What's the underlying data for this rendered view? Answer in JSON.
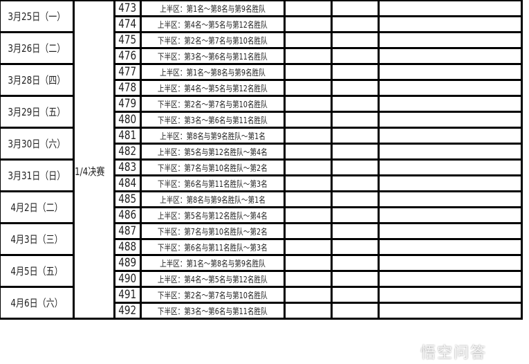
{
  "stage": "1/4决赛",
  "dates": [
    "3月25日（一）",
    "3月26日（二）",
    "3月28日（四）",
    "3月29日（五）",
    "3月30日（六）",
    "3月31日（日）",
    "4月2日（二）",
    "4月3日（三）",
    "4月5日（五）",
    "4月6日（六）"
  ],
  "games": [
    {
      "num": "473",
      "desc": "上半区：第1名～第8名与第9名胜队"
    },
    {
      "num": "474",
      "desc": "上半区：第4名～第5名与第12名胜队"
    },
    {
      "num": "475",
      "desc": "下半区：第2名～第7名与第10名胜队"
    },
    {
      "num": "476",
      "desc": "下半区：第3名～第6名与第11名胜队"
    },
    {
      "num": "477",
      "desc": "上半区：第1名～第8名与第9名胜队"
    },
    {
      "num": "478",
      "desc": "上半区：第4名～第5名与第12名胜队"
    },
    {
      "num": "479",
      "desc": "下半区：第2名～第7名与第10名胜队"
    },
    {
      "num": "480",
      "desc": "下半区：第3名～第6名与第11名胜队"
    },
    {
      "num": "481",
      "desc": "上半区：第8名与第9名胜队～第1名"
    },
    {
      "num": "482",
      "desc": "上半区：第5名与第12名胜队～第4名"
    },
    {
      "num": "483",
      "desc": "下半区：第7名与第10名胜队～第2名"
    },
    {
      "num": "484",
      "desc": "下半区：第6名与第11名胜队～第3名"
    },
    {
      "num": "485",
      "desc": "上半区：第8名与第9名胜队～第1名"
    },
    {
      "num": "486",
      "desc": "上半区：第5名与第12名胜队～第4名"
    },
    {
      "num": "487",
      "desc": "下半区：第7名与第10名胜队～第2名"
    },
    {
      "num": "488",
      "desc": "下半区：第6名与第11名胜队～第3名"
    },
    {
      "num": "489",
      "desc": "上半区：第1名～第8名与第9名胜队"
    },
    {
      "num": "490",
      "desc": "上半区：第4名～第5名与第12名胜队"
    },
    {
      "num": "491",
      "desc": "下半区：第2名～第7名与第10名胜队"
    },
    {
      "num": "492",
      "desc": "下半区：第3名～第6名与第11名胜队"
    }
  ],
  "watermark": "悟空问答"
}
